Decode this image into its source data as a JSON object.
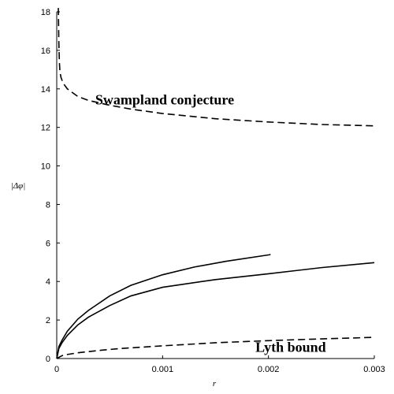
{
  "chart_data": {
    "type": "line",
    "xlabel": "r",
    "ylabel": "|Δφ|",
    "xlim": [
      0,
      0.003
    ],
    "ylim": [
      0,
      18
    ],
    "x_ticks": [
      {
        "value": 0,
        "label": "0"
      },
      {
        "value": 0.001,
        "label": "0.001"
      },
      {
        "value": 0.002,
        "label": "0.002"
      },
      {
        "value": 0.003,
        "label": "0.003"
      }
    ],
    "y_ticks": [
      {
        "value": 0,
        "label": "0"
      },
      {
        "value": 2,
        "label": "2"
      },
      {
        "value": 4,
        "label": "4"
      },
      {
        "value": 6,
        "label": "6"
      },
      {
        "value": 8,
        "label": "8"
      },
      {
        "value": 10,
        "label": "10"
      },
      {
        "value": 12,
        "label": "12"
      },
      {
        "value": 14,
        "label": "14"
      },
      {
        "value": 16,
        "label": "16"
      },
      {
        "value": 18,
        "label": "18"
      }
    ],
    "grid": false,
    "annotations": [
      {
        "text": "Swampland conjecture",
        "x": 0.00102,
        "y": 13.2
      },
      {
        "text": "Lyth bound",
        "x": 0.00221,
        "y": 0.35
      }
    ],
    "series": [
      {
        "style": "dashed",
        "color": "#000000",
        "points": [
          [
            1.5e-05,
            18.2
          ],
          [
            2e-05,
            16.4
          ],
          [
            2.5e-05,
            15.4
          ],
          [
            3e-05,
            14.9
          ],
          [
            4e-05,
            14.6
          ],
          [
            6e-05,
            14.3
          ],
          [
            0.0001,
            14.0
          ],
          [
            0.0002,
            13.6
          ],
          [
            0.0003,
            13.4
          ],
          [
            0.0005,
            13.15
          ],
          [
            0.0007,
            12.95
          ],
          [
            0.001,
            12.72
          ],
          [
            0.0015,
            12.45
          ],
          [
            0.002,
            12.28
          ],
          [
            0.0025,
            12.15
          ],
          [
            0.003,
            12.08
          ]
        ]
      },
      {
        "style": "solid",
        "color": "#000000",
        "points": [
          [
            0,
            0
          ],
          [
            2e-05,
            0.62
          ],
          [
            5e-05,
            0.95
          ],
          [
            0.0001,
            1.42
          ],
          [
            0.0002,
            2.05
          ],
          [
            0.0003,
            2.5
          ],
          [
            0.0005,
            3.25
          ],
          [
            0.0007,
            3.8
          ],
          [
            0.001,
            4.35
          ],
          [
            0.0013,
            4.75
          ],
          [
            0.0016,
            5.05
          ],
          [
            0.002,
            5.38
          ],
          [
            0.00202,
            5.4
          ]
        ]
      },
      {
        "style": "solid",
        "color": "#000000",
        "points": [
          [
            0,
            0
          ],
          [
            2e-05,
            0.52
          ],
          [
            5e-05,
            0.82
          ],
          [
            0.0001,
            1.2
          ],
          [
            0.0002,
            1.75
          ],
          [
            0.0003,
            2.15
          ],
          [
            0.0005,
            2.75
          ],
          [
            0.0007,
            3.25
          ],
          [
            0.001,
            3.7
          ],
          [
            0.0015,
            4.1
          ],
          [
            0.002,
            4.4
          ],
          [
            0.0025,
            4.72
          ],
          [
            0.003,
            4.98
          ]
        ]
      },
      {
        "style": "dashed",
        "color": "#000000",
        "points": [
          [
            0,
            0
          ],
          [
            5e-05,
            0.15
          ],
          [
            0.0001,
            0.21
          ],
          [
            0.0002,
            0.3
          ],
          [
            0.0004,
            0.42
          ],
          [
            0.0006,
            0.52
          ],
          [
            0.001,
            0.66
          ],
          [
            0.0015,
            0.82
          ],
          [
            0.002,
            0.93
          ],
          [
            0.0025,
            1.02
          ],
          [
            0.003,
            1.1
          ]
        ]
      }
    ]
  }
}
